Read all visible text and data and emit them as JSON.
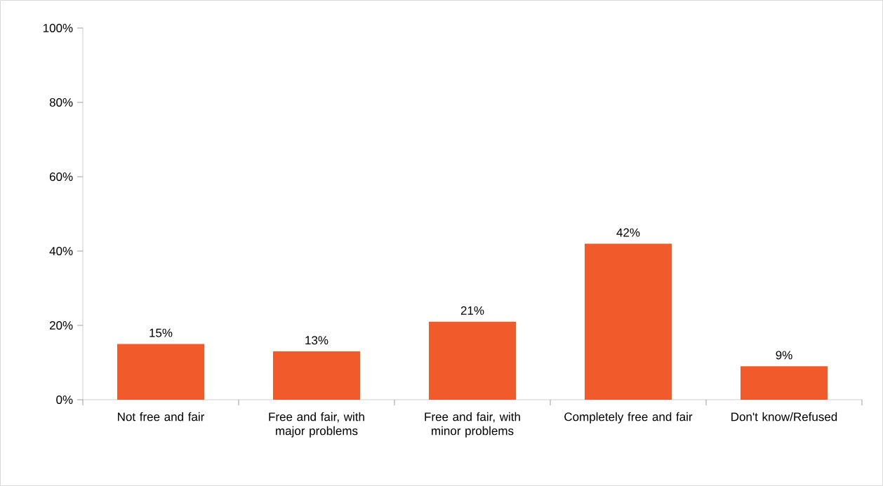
{
  "chart_data": {
    "type": "bar",
    "categories": [
      "Not free and fair",
      "Free and fair, with major problems",
      "Free and fair, with minor problems",
      "Completely free and fair",
      "Don't know/Refused"
    ],
    "values": [
      15,
      13,
      21,
      42,
      9
    ],
    "value_labels": [
      "15%",
      "13%",
      "21%",
      "42%",
      "9%"
    ],
    "color": "#f15a2b",
    "ylim": [
      0,
      100
    ],
    "yticks": [
      {
        "value": 0,
        "label": "0%"
      },
      {
        "value": 20,
        "label": "20%"
      },
      {
        "value": 40,
        "label": "40%"
      },
      {
        "value": 60,
        "label": "60%"
      },
      {
        "value": 80,
        "label": "80%"
      },
      {
        "value": 100,
        "label": "100%"
      }
    ],
    "grid": false
  }
}
